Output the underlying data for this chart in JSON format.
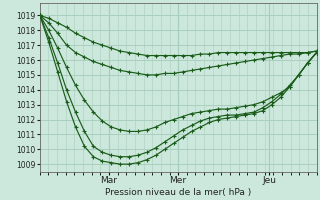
{
  "bg_color": "#cce8dc",
  "grid_color": "#aacfbf",
  "line_color": "#1a5c1a",
  "marker_color": "#1a5c1a",
  "xlabel": "Pression niveau de la mer( hPa )",
  "ylim": [
    1008.5,
    1019.8
  ],
  "xlim": [
    0,
    1
  ],
  "yticks": [
    1009,
    1010,
    1011,
    1012,
    1013,
    1014,
    1015,
    1016,
    1017,
    1018,
    1019
  ],
  "day_labels": [
    "Mar",
    "Mer",
    "Jeu"
  ],
  "day_positions": [
    0.25,
    0.5,
    0.83
  ],
  "series": [
    [
      1019.0,
      1018.8,
      1018.5,
      1018.2,
      1017.8,
      1017.5,
      1017.2,
      1017.0,
      1016.8,
      1016.6,
      1016.5,
      1016.4,
      1016.3,
      1016.3,
      1016.3,
      1016.3,
      1016.3,
      1016.3,
      1016.4,
      1016.4,
      1016.5,
      1016.5,
      1016.5,
      1016.5,
      1016.5,
      1016.5,
      1016.5,
      1016.5,
      1016.5,
      1016.5,
      1016.5,
      1016.6
    ],
    [
      1019.0,
      1018.5,
      1017.8,
      1017.0,
      1016.5,
      1016.2,
      1015.9,
      1015.7,
      1015.5,
      1015.3,
      1015.2,
      1015.1,
      1015.0,
      1015.0,
      1015.1,
      1015.1,
      1015.2,
      1015.3,
      1015.4,
      1015.5,
      1015.6,
      1015.7,
      1015.8,
      1015.9,
      1016.0,
      1016.1,
      1016.2,
      1016.3,
      1016.4,
      1016.4,
      1016.5,
      1016.6
    ],
    [
      1019.0,
      1018.0,
      1016.8,
      1015.5,
      1014.3,
      1013.3,
      1012.5,
      1011.9,
      1011.5,
      1011.3,
      1011.2,
      1011.2,
      1011.3,
      1011.5,
      1011.8,
      1012.0,
      1012.2,
      1012.4,
      1012.5,
      1012.6,
      1012.7,
      1012.7,
      1012.8,
      1012.9,
      1013.0,
      1013.2,
      1013.5,
      1013.8,
      1014.2,
      1015.0,
      1015.8,
      1016.5
    ],
    [
      1019.0,
      1017.5,
      1015.8,
      1014.0,
      1012.5,
      1011.2,
      1010.2,
      1009.8,
      1009.6,
      1009.5,
      1009.5,
      1009.6,
      1009.8,
      1010.1,
      1010.5,
      1010.9,
      1011.3,
      1011.6,
      1011.9,
      1012.1,
      1012.2,
      1012.3,
      1012.3,
      1012.4,
      1012.5,
      1012.8,
      1013.2,
      1013.7,
      1014.3,
      1015.0,
      1015.8,
      1016.5
    ],
    [
      1019.0,
      1017.2,
      1015.2,
      1013.2,
      1011.5,
      1010.2,
      1009.5,
      1009.2,
      1009.1,
      1009.0,
      1009.0,
      1009.1,
      1009.3,
      1009.6,
      1010.0,
      1010.4,
      1010.8,
      1011.2,
      1011.5,
      1011.8,
      1012.0,
      1012.1,
      1012.2,
      1012.3,
      1012.4,
      1012.6,
      1013.0,
      1013.5,
      1014.2,
      1015.0,
      1015.8,
      1016.5
    ]
  ]
}
